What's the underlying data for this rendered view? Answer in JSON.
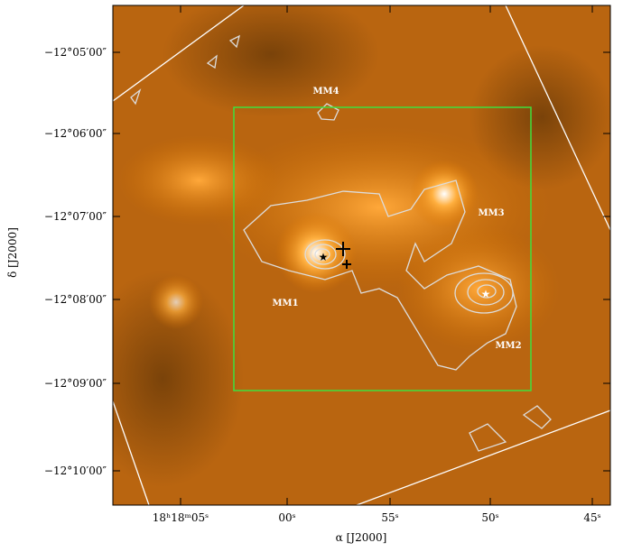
{
  "figure": {
    "x_axis": {
      "label": "α [J2000]",
      "ticks": [
        "18ʰ18ᵐ05ˢ",
        "00ˢ",
        "55ˢ",
        "50ˢ",
        "45ˢ"
      ]
    },
    "y_axis": {
      "label": "δ [J2000]",
      "ticks": [
        "−12°05′00″",
        "−12°06′00″",
        "−12°07′00″",
        "−12°08′00″",
        "−12°09′00″",
        "−12°10′00″"
      ]
    },
    "sources": [
      "MM4",
      "MM3",
      "MM1",
      "MM2"
    ]
  }
}
